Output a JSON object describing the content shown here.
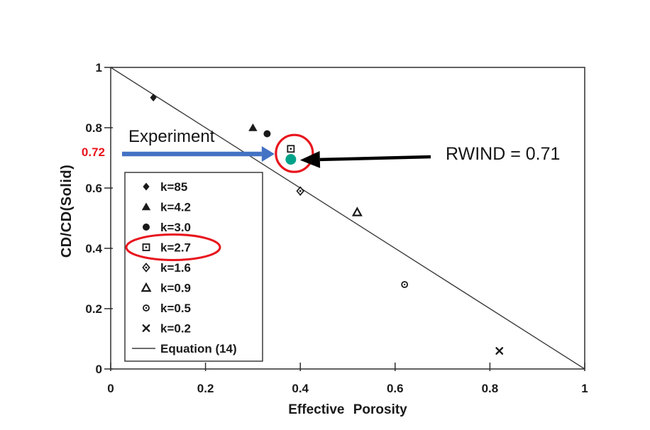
{
  "colors": {
    "ink": "#1a1a1a",
    "plot_line": "#3d3d3d",
    "highlight_red": "#e8151d",
    "arrow_blue": "#4472c4",
    "experiment_teal": "#00a38a",
    "background": "#ffffff"
  },
  "annotations": {
    "experiment_label": "Experiment",
    "rwind_label": "RWIND = 0.71",
    "special_y_label": "0.72"
  },
  "chart_data": {
    "type": "scatter",
    "title": "",
    "xlabel": "Effective Porosity",
    "ylabel": "CD/CD(Solid)",
    "xlim": [
      0,
      1
    ],
    "ylim": [
      0,
      1
    ],
    "grid": false,
    "legend_position": "lower-left",
    "x_ticks": {
      "values": [
        0,
        0.2,
        0.4,
        0.6,
        0.8,
        1
      ],
      "labels": [
        "0",
        "0.2",
        "0.4",
        "0.6",
        "0.8",
        "1"
      ]
    },
    "y_ticks": {
      "values": [
        0,
        0.2,
        0.4,
        0.6,
        0.8,
        1
      ],
      "labels": [
        "0",
        "0.2",
        "0.4",
        "0.6",
        "0.8",
        "1"
      ]
    },
    "special_y_tick": {
      "value": 0.72,
      "label": "0.72"
    },
    "reference_line": {
      "label": "Equation (14)",
      "x": [
        0,
        1
      ],
      "y": [
        1,
        0
      ]
    },
    "series": [
      {
        "label": "k=85",
        "marker": "filled-diamond",
        "points": [
          [
            0.09,
            0.9
          ]
        ]
      },
      {
        "label": "k=4.2",
        "marker": "filled-triangle",
        "points": [
          [
            0.3,
            0.8
          ]
        ]
      },
      {
        "label": "k=3.0",
        "marker": "filled-circle",
        "points": [
          [
            0.33,
            0.78
          ]
        ]
      },
      {
        "label": "k=2.7",
        "marker": "open-square-dot",
        "points": [
          [
            0.38,
            0.73
          ]
        ],
        "highlighted": true
      },
      {
        "label": "k=1.6",
        "marker": "open-diamond-dot",
        "points": [
          [
            0.4,
            0.59
          ]
        ]
      },
      {
        "label": "k=0.9",
        "marker": "open-triangle",
        "points": [
          [
            0.52,
            0.52
          ]
        ]
      },
      {
        "label": "k=0.5",
        "marker": "open-circle-dot",
        "points": [
          [
            0.62,
            0.28
          ]
        ]
      },
      {
        "label": "k=0.2",
        "marker": "x-mark",
        "points": [
          [
            0.82,
            0.06
          ]
        ]
      }
    ],
    "experiment_point": {
      "x": 0.38,
      "y": 0.695
    }
  }
}
